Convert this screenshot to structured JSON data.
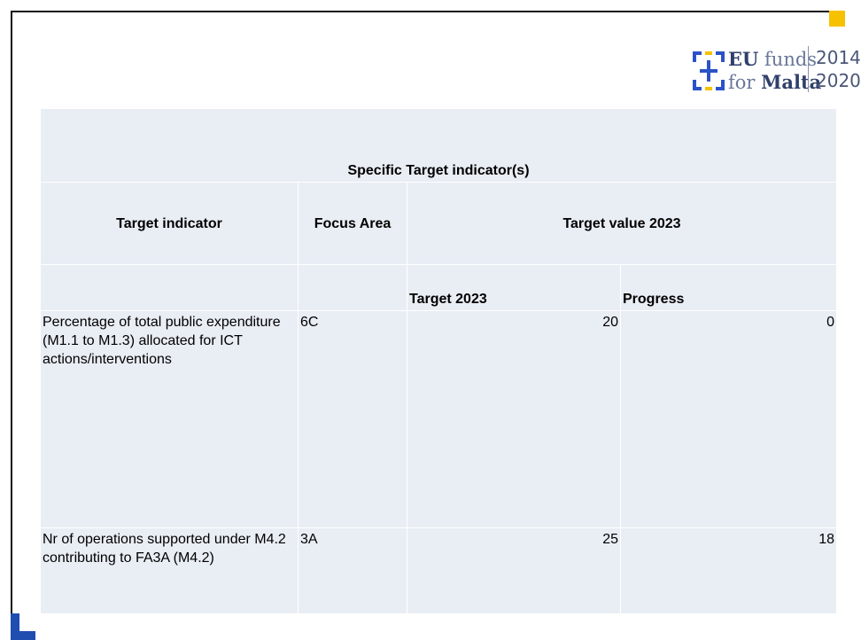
{
  "logo": {
    "eu": "EU",
    "funds": "funds",
    "for": "for",
    "malta": "Malta",
    "year_start": "2014",
    "year_end": "2020"
  },
  "table": {
    "title": "Specific Target indicator(s)",
    "headers": [
      "Target indicator",
      "Focus Area",
      "Target value 2023"
    ],
    "subheaders": [
      "Target 2023",
      "Progress"
    ],
    "rows": [
      [
        "Percentage of total public expenditure (M1.1 to M1.3) allocated for ICT actions/interventions",
        "6C",
        20,
        0
      ],
      [
        "Nr of operations supported under M4.2 contributing to FA3A (M4.2)",
        "3A",
        25,
        18
      ]
    ]
  }
}
